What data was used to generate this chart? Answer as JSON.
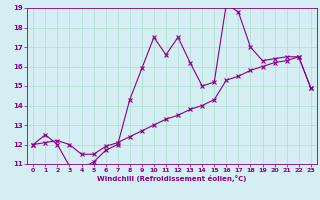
{
  "xlabel": "Windchill (Refroidissement éolien,°C)",
  "x_values": [
    0,
    1,
    2,
    3,
    4,
    5,
    6,
    7,
    8,
    9,
    10,
    11,
    12,
    13,
    14,
    15,
    16,
    17,
    18,
    19,
    20,
    21,
    22,
    23
  ],
  "upper_line": [
    12.0,
    12.5,
    12.0,
    10.9,
    10.8,
    11.1,
    11.7,
    12.0,
    14.3,
    15.9,
    17.5,
    16.6,
    17.5,
    16.2,
    15.0,
    15.2,
    19.2,
    18.8,
    17.0,
    16.3,
    16.4,
    16.5,
    16.5,
    14.9
  ],
  "lower_line": [
    12.0,
    12.1,
    12.2,
    12.0,
    11.5,
    11.5,
    11.9,
    12.1,
    12.4,
    12.7,
    13.0,
    13.3,
    13.5,
    13.8,
    14.0,
    14.3,
    15.3,
    15.5,
    15.8,
    16.0,
    16.2,
    16.3,
    16.5,
    14.9
  ],
  "line_color": "#880088",
  "bg_color": "#d4eef4",
  "grid_color": "#aaddcc",
  "text_color": "#880088",
  "ylim": [
    11,
    19
  ],
  "xlim": [
    -0.5,
    23.5
  ],
  "yticks": [
    11,
    12,
    13,
    14,
    15,
    16,
    17,
    18,
    19
  ],
  "xticks": [
    0,
    1,
    2,
    3,
    4,
    5,
    6,
    7,
    8,
    9,
    10,
    11,
    12,
    13,
    14,
    15,
    16,
    17,
    18,
    19,
    20,
    21,
    22,
    23
  ]
}
